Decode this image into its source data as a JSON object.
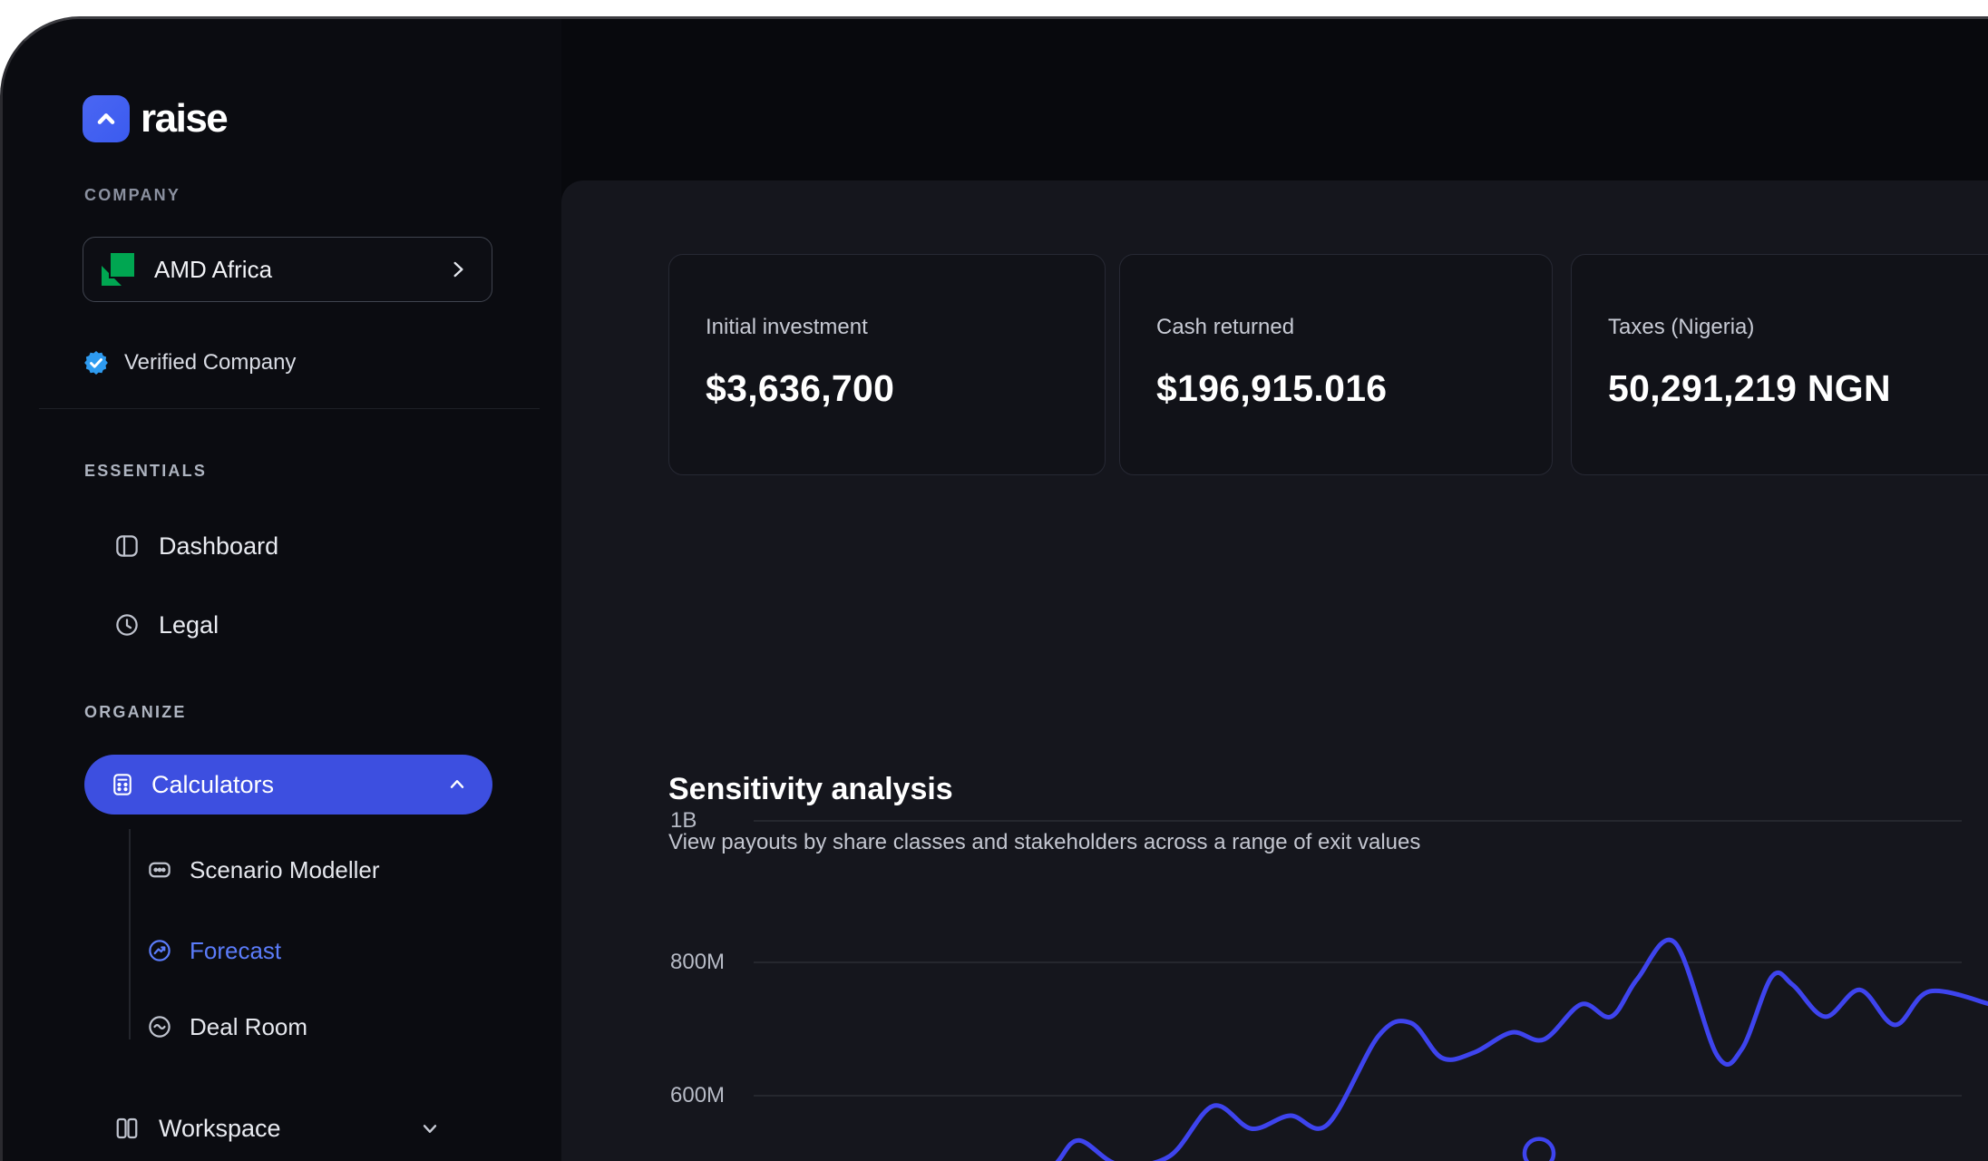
{
  "colors": {
    "accent_blue": "#3D4FE0",
    "forecast_blue": "#5B7CFA",
    "verified_blue": "#2E9BF0",
    "line_blue": "#3E44EE",
    "amd_green": "#00A651",
    "logo_blue": "#3B5BF0"
  },
  "brand": {
    "name": "raise"
  },
  "sidebar": {
    "company_section_label": "COMPANY",
    "company_name": "AMD Africa",
    "verified_label": "Verified Company",
    "essentials_label": "ESSENTIALS",
    "dashboard_label": "Dashboard",
    "legal_label": "Legal",
    "organize_label": "ORGANIZE",
    "calculators_label": "Calculators",
    "scenario_label": "Scenario Modeller",
    "forecast_label": "Forecast",
    "dealroom_label": "Deal Room",
    "workspace_label": "Workspace"
  },
  "cards": [
    {
      "label": "Initial investment",
      "value": "$3,636,700"
    },
    {
      "label": "Cash returned",
      "value": "$196,915.016"
    },
    {
      "label": "Taxes (Nigeria)",
      "value": "50,291,219 NGN"
    }
  ],
  "section": {
    "title": "Sensitivity analysis",
    "subtitle": "View payouts by share classes and stakeholders across a range of exit values"
  },
  "chart_data": {
    "type": "line",
    "title": "Sensitivity analysis",
    "y_ticks": [
      "1B",
      "800M",
      "600M"
    ],
    "y_tick_values_M": [
      1000,
      800,
      600
    ],
    "visible_value_range_M": [
      500,
      840
    ],
    "grid": true,
    "legend": "none",
    "x_unit": "normalized 0-1 across visible plot width (x-axis labels cropped out of view)",
    "series": [
      {
        "name": "payout-curve",
        "color": "#3E44EE",
        "points": [
          [
            0.225,
            470
          ],
          [
            0.248,
            500
          ],
          [
            0.267,
            535
          ],
          [
            0.299,
            500
          ],
          [
            0.34,
            512
          ],
          [
            0.375,
            585
          ],
          [
            0.406,
            552
          ],
          [
            0.437,
            571
          ],
          [
            0.467,
            558
          ],
          [
            0.508,
            687
          ],
          [
            0.534,
            706
          ],
          [
            0.559,
            655
          ],
          [
            0.585,
            663
          ],
          [
            0.615,
            692
          ],
          [
            0.641,
            682
          ],
          [
            0.671,
            733
          ],
          [
            0.695,
            715
          ],
          [
            0.716,
            770
          ],
          [
            0.746,
            823
          ],
          [
            0.78,
            659
          ],
          [
            0.8,
            668
          ],
          [
            0.824,
            773
          ],
          [
            0.841,
            761
          ],
          [
            0.867,
            715
          ],
          [
            0.895,
            754
          ],
          [
            0.923,
            703
          ],
          [
            0.951,
            752
          ],
          [
            1.0,
            733
          ]
        ]
      }
    ],
    "marker": {
      "x": 0.637,
      "value_M": 516,
      "style": "open-circle"
    }
  }
}
